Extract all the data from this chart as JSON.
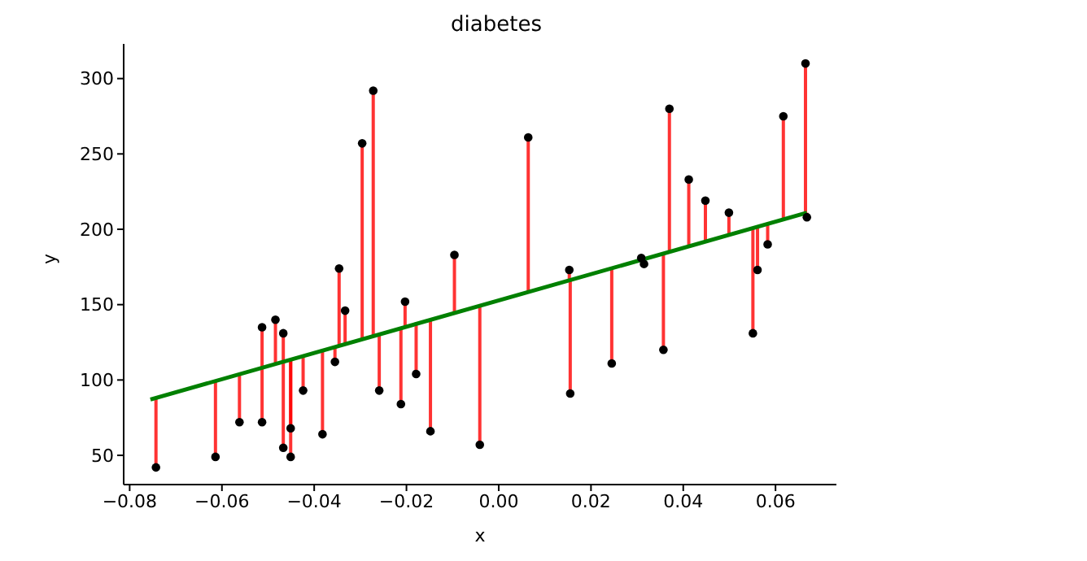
{
  "chart_data": {
    "type": "scatter",
    "title": "diabetes",
    "xlabel": "x",
    "ylabel": "y",
    "xlim": [
      -0.0813,
      0.0732
    ],
    "ylim": [
      30.6,
      323
    ],
    "xticks": [
      {
        "value": -0.08,
        "label": "−0.08"
      },
      {
        "value": -0.06,
        "label": "−0.06"
      },
      {
        "value": -0.04,
        "label": "−0.04"
      },
      {
        "value": -0.02,
        "label": "−0.02"
      },
      {
        "value": 0,
        "label": "0.00"
      },
      {
        "value": 0.02,
        "label": "0.02"
      },
      {
        "value": 0.04,
        "label": "0.04"
      },
      {
        "value": 0.06,
        "label": "0.06"
      }
    ],
    "yticks": [
      50,
      100,
      150,
      200,
      250,
      300
    ],
    "grid": false,
    "legend": false,
    "line_style": "solid",
    "series": [
      {
        "color": "#000000",
        "marker": "circle",
        "x": [
          -0.0743,
          -0.0614,
          -0.0562,
          -0.0513,
          -0.0513,
          -0.0484,
          -0.0467,
          -0.0467,
          -0.0451,
          -0.0451,
          -0.0424,
          -0.0382,
          -0.0355,
          -0.0346,
          -0.0333,
          -0.0296,
          -0.0272,
          -0.0259,
          -0.0212,
          -0.0203,
          -0.0179,
          -0.0148,
          -0.0096,
          -0.0041,
          0.0064,
          0.0153,
          0.0155,
          0.0245,
          0.0309,
          0.0315,
          0.0357,
          0.037,
          0.0412,
          0.0448,
          0.0499,
          0.0551,
          0.0561,
          0.0583,
          0.0617,
          0.0665,
          0.0668
        ],
        "values": [
          42,
          49,
          72,
          72,
          135,
          140,
          131,
          55,
          49,
          68,
          93,
          64,
          112,
          174,
          146,
          257,
          292,
          93,
          84,
          152,
          104,
          66,
          183,
          57,
          261,
          173,
          91,
          111,
          181,
          177,
          120,
          280,
          233,
          219,
          211,
          131,
          173,
          190,
          275,
          310,
          208
        ],
        "errors": [
          [
            42,
            88
          ],
          [
            49,
            99
          ],
          [
            72,
            104
          ],
          [
            72,
            108
          ],
          [
            108,
            135
          ],
          [
            110,
            140
          ],
          [
            112,
            131
          ],
          [
            55,
            112
          ],
          [
            49,
            113
          ],
          [
            68,
            113
          ],
          [
            93,
            116
          ],
          [
            64,
            119
          ],
          [
            112,
            122
          ],
          [
            122,
            174
          ],
          [
            124,
            146
          ],
          [
            127,
            257
          ],
          [
            129,
            292
          ],
          [
            93,
            130
          ],
          [
            84,
            134
          ],
          [
            135,
            152
          ],
          [
            104,
            137
          ],
          [
            66,
            140
          ],
          [
            144,
            183
          ],
          [
            57,
            149
          ],
          [
            158,
            261
          ],
          [
            166,
            173
          ],
          [
            91,
            166
          ],
          [
            111,
            174
          ],
          [
            180,
            181
          ],
          null,
          [
            120,
            184
          ],
          [
            185,
            280
          ],
          [
            189,
            233
          ],
          [
            192,
            219
          ],
          [
            197,
            211
          ],
          [
            131,
            201
          ],
          [
            173,
            202
          ],
          [
            190,
            204
          ],
          [
            207,
            275
          ],
          [
            211,
            310
          ],
          [
            208,
            211
          ]
        ]
      },
      {
        "type": "line",
        "color": "#008000",
        "marker": "none",
        "x": [
          -0.0755,
          0.0668
        ],
        "values": [
          87,
          211
        ]
      }
    ]
  }
}
